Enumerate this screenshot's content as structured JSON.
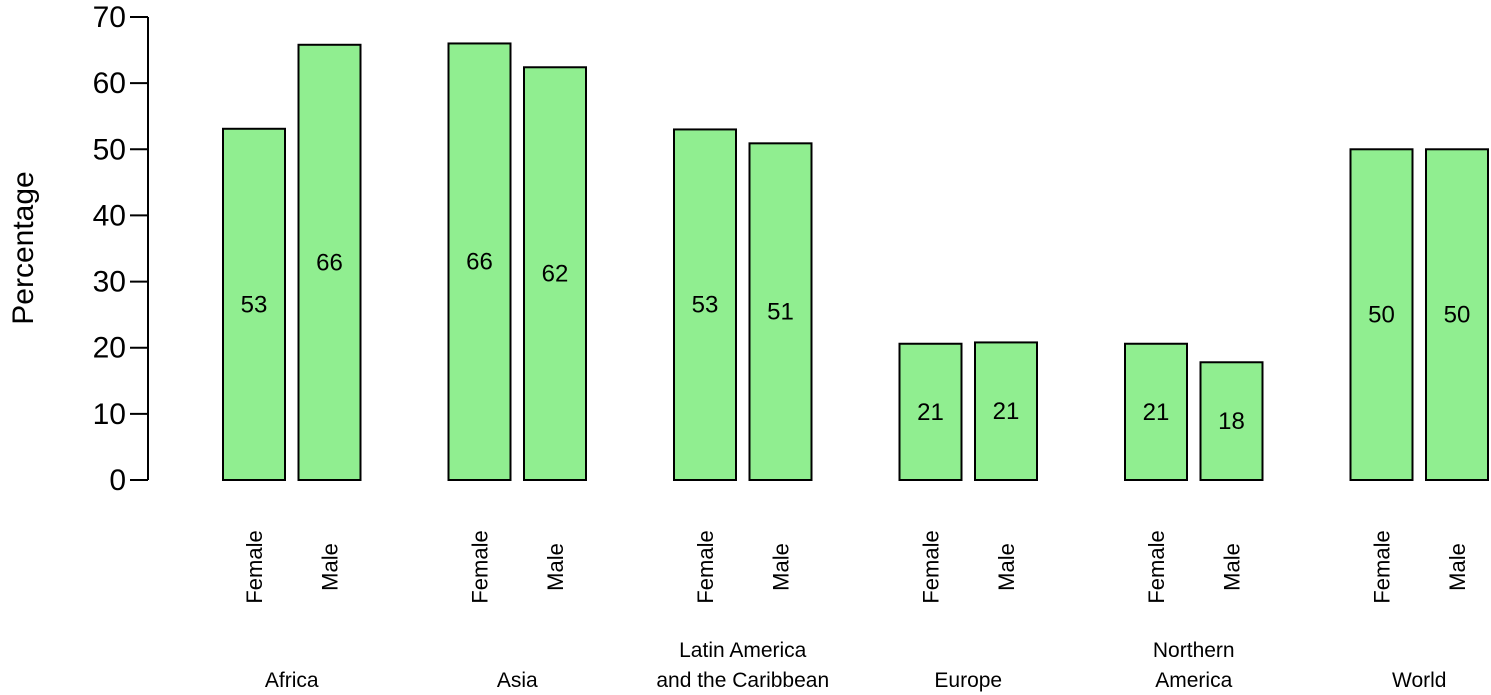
{
  "chart_data": {
    "type": "bar",
    "ylabel": "Percentage",
    "ylim": [
      0,
      70
    ],
    "yticks": [
      0,
      10,
      20,
      30,
      40,
      50,
      60,
      70
    ],
    "grid": false,
    "bar_color": "#90EE90",
    "groups": [
      {
        "region": [
          "Africa"
        ],
        "bars": [
          {
            "label": "Female",
            "value": 53.1,
            "text": "53"
          },
          {
            "label": "Male",
            "value": 65.8,
            "text": "66"
          }
        ]
      },
      {
        "region": [
          "Asia"
        ],
        "bars": [
          {
            "label": "Female",
            "value": 66.0,
            "text": "66"
          },
          {
            "label": "Male",
            "value": 62.4,
            "text": "62"
          }
        ]
      },
      {
        "region": [
          "Latin America",
          "and the Caribbean"
        ],
        "bars": [
          {
            "label": "Female",
            "value": 53.0,
            "text": "53"
          },
          {
            "label": "Male",
            "value": 50.9,
            "text": "51"
          }
        ]
      },
      {
        "region": [
          "Europe"
        ],
        "bars": [
          {
            "label": "Female",
            "value": 20.6,
            "text": "21"
          },
          {
            "label": "Male",
            "value": 20.8,
            "text": "21"
          }
        ]
      },
      {
        "region": [
          "Northern",
          "America"
        ],
        "bars": [
          {
            "label": "Female",
            "value": 20.6,
            "text": "21"
          },
          {
            "label": "Male",
            "value": 17.8,
            "text": "18"
          }
        ]
      },
      {
        "region": [
          "World"
        ],
        "bars": [
          {
            "label": "Female",
            "value": 50.0,
            "text": "50"
          },
          {
            "label": "Male",
            "value": 50.0,
            "text": "50"
          }
        ]
      }
    ]
  }
}
